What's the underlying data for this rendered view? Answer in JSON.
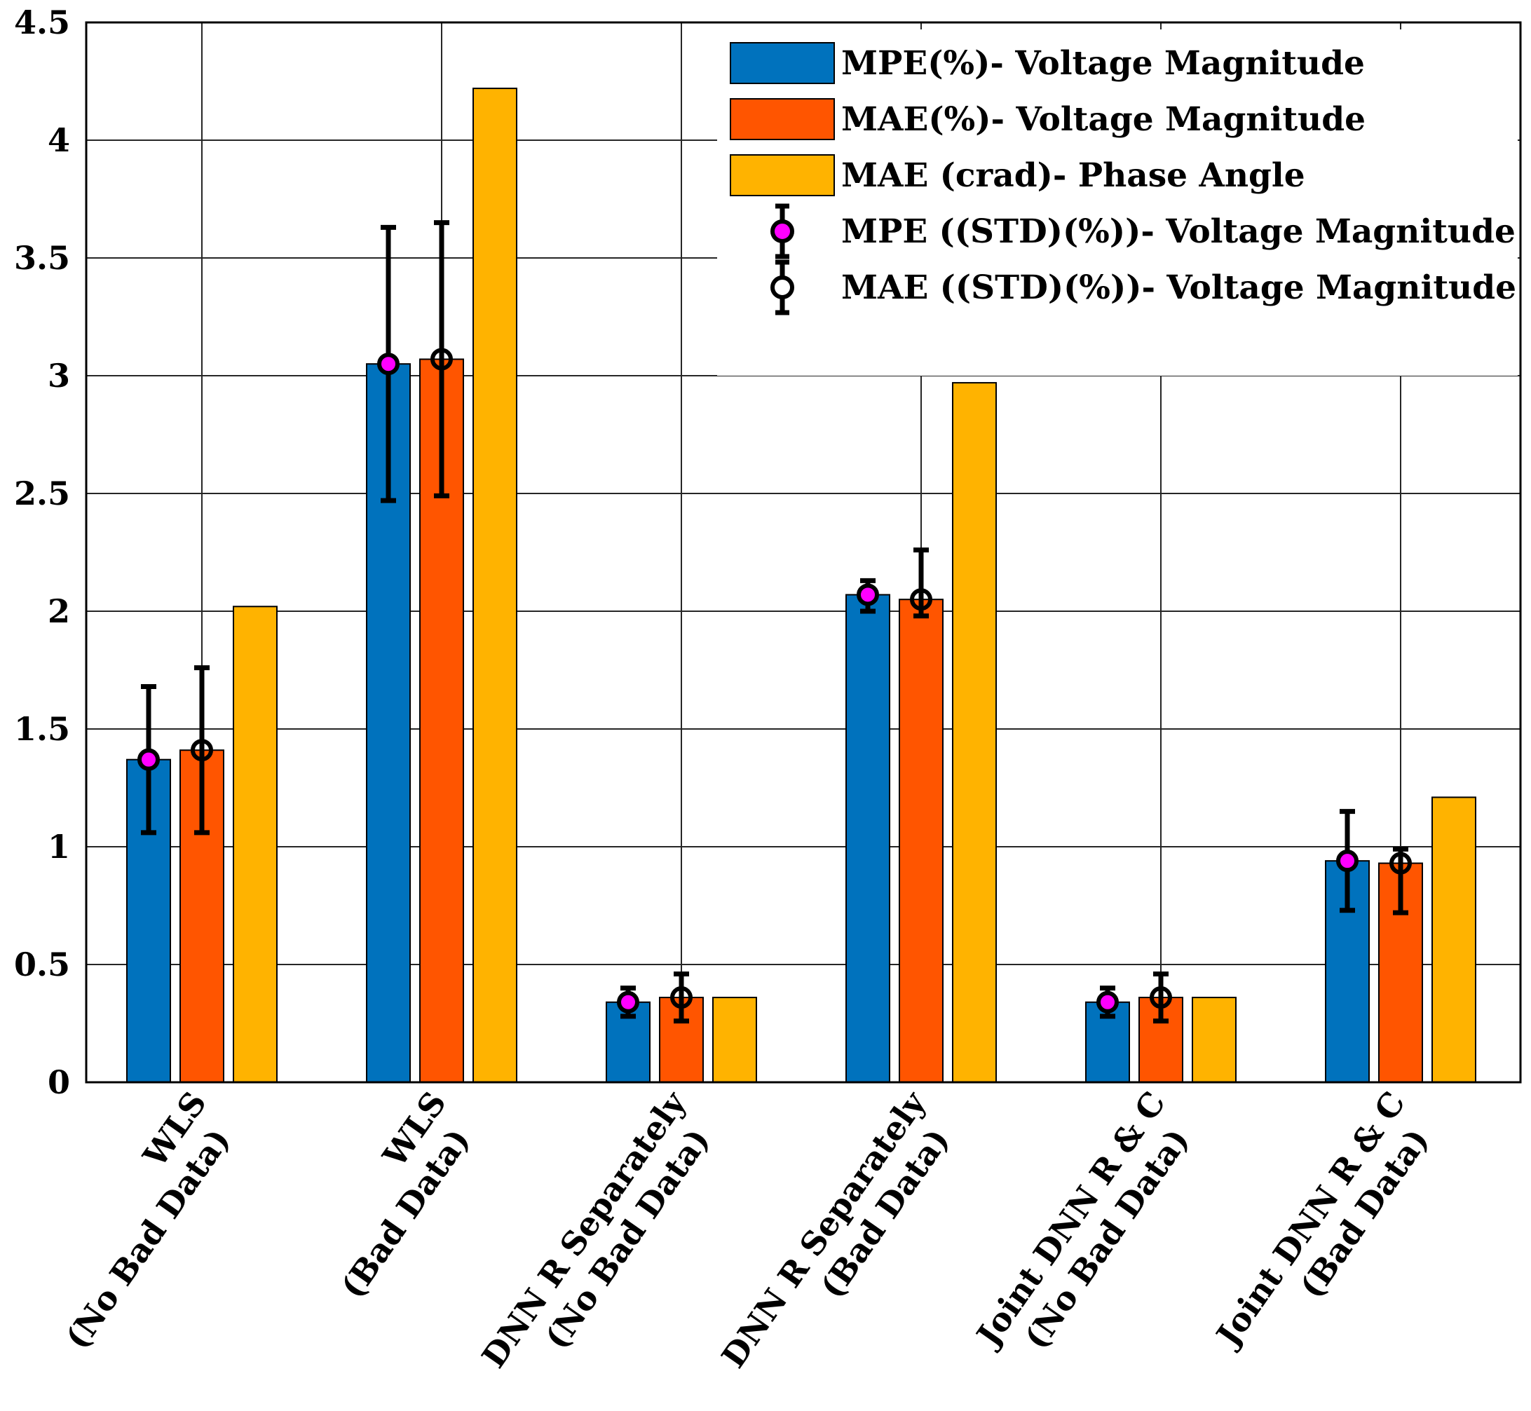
{
  "chart_data": {
    "type": "bar",
    "title": "",
    "xlabel": "",
    "ylabel": "",
    "ylim": [
      0,
      4.5
    ],
    "yticks": [
      "0",
      "0.5",
      "1",
      "1.5",
      "2",
      "2.5",
      "3",
      "3.5",
      "4",
      "4.5"
    ],
    "grid": true,
    "legend_position": "top-right",
    "categories": [
      [
        "WLS",
        "(No Bad Data)"
      ],
      [
        "WLS",
        "(Bad Data)"
      ],
      [
        "DNN R Separately",
        "(No Bad Data)"
      ],
      [
        "DNN R Separately",
        "(Bad Data)"
      ],
      [
        "Joint DNN R & C",
        "(No Bad Data)"
      ],
      [
        "Joint DNN R & C",
        "(Bad Data)"
      ]
    ],
    "series": [
      {
        "name": "MPE(%)- Voltage Magnitude",
        "color": "#0072BD",
        "values": [
          1.37,
          3.05,
          0.34,
          2.07,
          0.34,
          0.94
        ]
      },
      {
        "name": "MAE(%)- Voltage Magnitude",
        "color": "#FF5500",
        "values": [
          1.41,
          3.07,
          0.36,
          2.05,
          0.36,
          0.93
        ]
      },
      {
        "name": "MAE (crad)- Phase Angle",
        "color": "#FFB300",
        "values": [
          2.02,
          4.22,
          0.36,
          2.97,
          0.36,
          1.21
        ]
      }
    ],
    "errorbars": [
      {
        "name": "MPE ((STD)(%))- Voltage Magnitude",
        "series_index": 0,
        "marker": "magenta-filled-circle",
        "center": [
          1.37,
          3.05,
          0.34,
          2.07,
          0.34,
          0.94
        ],
        "lower": [
          1.06,
          2.47,
          0.28,
          2.0,
          0.28,
          0.73
        ],
        "upper": [
          1.68,
          3.63,
          0.4,
          2.13,
          0.4,
          1.15
        ]
      },
      {
        "name": "MAE ((STD)(%))- Voltage Magnitude",
        "series_index": 1,
        "marker": "open-circle",
        "center": [
          1.41,
          3.07,
          0.36,
          2.05,
          0.36,
          0.93
        ],
        "lower": [
          1.06,
          2.49,
          0.26,
          1.98,
          0.26,
          0.72
        ],
        "upper": [
          1.76,
          3.65,
          0.46,
          2.26,
          0.46,
          0.99
        ]
      }
    ]
  }
}
